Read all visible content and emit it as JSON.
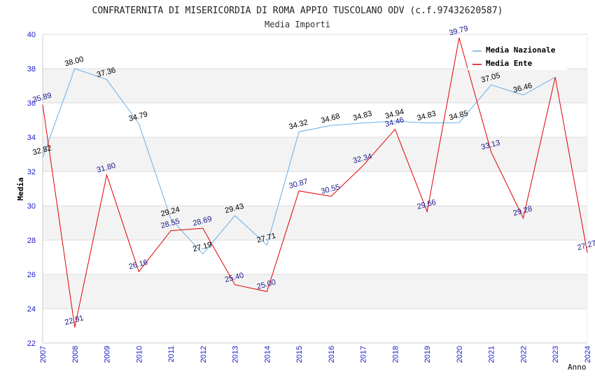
{
  "chart_data": {
    "type": "line",
    "title": "CONFRATERNITA DI MISERICORDIA DI ROMA APPIO TUSCOLANO ODV (c.f.97432620587)",
    "subtitle": "Media Importi",
    "xlabel": "Anno",
    "ylabel": "Media",
    "ylim": [
      22,
      40
    ],
    "yticks": [
      22,
      24,
      26,
      28,
      30,
      32,
      34,
      36,
      38,
      40
    ],
    "grid": "horizontal bands",
    "legend_placement": "top-right",
    "x": [
      "2007",
      "2008",
      "2009",
      "2010",
      "2011",
      "2012",
      "2013",
      "2014",
      "2015",
      "2016",
      "2017",
      "2018",
      "2019",
      "2020",
      "2021",
      "2022",
      "2023",
      "2024"
    ],
    "series": [
      {
        "name": "Media Nazionale",
        "color": "#6aaee6",
        "label_color": "#000000",
        "values": [
          32.82,
          38.0,
          37.36,
          34.79,
          29.24,
          27.19,
          29.43,
          27.71,
          34.32,
          34.68,
          34.83,
          34.94,
          34.83,
          34.85,
          37.05,
          36.46,
          37.5,
          null
        ],
        "labels": [
          "32.82",
          "38.00",
          "37.36",
          "34.79",
          "29.24",
          "27.19",
          "29.43",
          "27.71",
          "34.32",
          "34.68",
          "34.83",
          "34.94",
          "34.83",
          "34.85",
          "37.05",
          "36.46",
          "",
          ""
        ]
      },
      {
        "name": "Media Ente",
        "color": "#e00000",
        "label_color": "#1a1a8c",
        "values": [
          35.89,
          22.91,
          31.8,
          26.16,
          28.55,
          28.69,
          25.4,
          25.0,
          30.87,
          30.55,
          32.34,
          34.46,
          29.66,
          39.79,
          33.13,
          29.28,
          37.5,
          27.27
        ],
        "labels": [
          "35.89",
          "22.91",
          "31.80",
          "26.16",
          "28.55",
          "28.69",
          "25.40",
          "25.00",
          "30.87",
          "30.55",
          "32.34",
          "34.46",
          "29.66",
          "39.79",
          "33.13",
          "29.28",
          "",
          "27.27"
        ]
      }
    ]
  }
}
